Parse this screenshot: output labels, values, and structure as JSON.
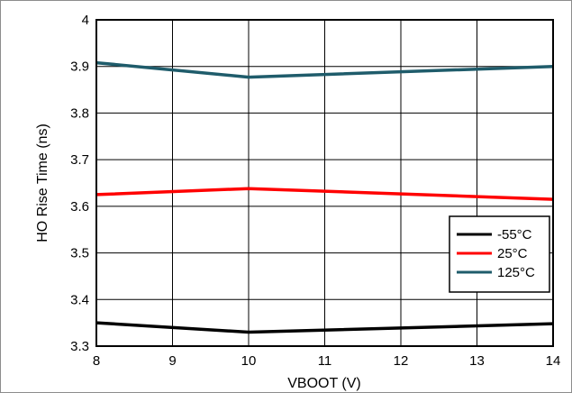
{
  "chart_data": {
    "type": "line",
    "xlabel": "VBOOT (V)",
    "ylabel": "HO Rise Time (ns)",
    "xlim": [
      8,
      14
    ],
    "ylim": [
      3.3,
      4.0
    ],
    "x_ticks": [
      "8",
      "9",
      "10",
      "11",
      "12",
      "13",
      "14"
    ],
    "y_ticks": [
      "3.3",
      "3.4",
      "3.5",
      "3.6",
      "3.7",
      "3.8",
      "3.9",
      "4"
    ],
    "grid": true,
    "legend_position": "right",
    "series": [
      {
        "name": "-55°C",
        "color": "#000000",
        "x": [
          8,
          10,
          14
        ],
        "y": [
          3.35,
          3.33,
          3.348
        ]
      },
      {
        "name": "25°C",
        "color": "#ff0000",
        "x": [
          8,
          10,
          14
        ],
        "y": [
          3.625,
          3.638,
          3.615
        ]
      },
      {
        "name": "125°C",
        "color": "#1f5c6b",
        "x": [
          8,
          10,
          14
        ],
        "y": [
          3.908,
          3.877,
          3.9
        ]
      }
    ]
  }
}
